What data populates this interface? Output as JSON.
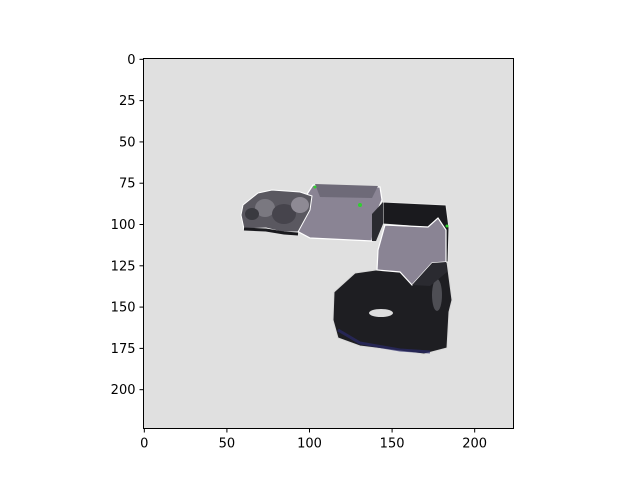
{
  "figure": {
    "x_ticks": [
      "0",
      "50",
      "100",
      "150",
      "200"
    ],
    "y_ticks": [
      "0",
      "25",
      "50",
      "75",
      "100",
      "125",
      "150",
      "175",
      "200"
    ],
    "x_tick_values": [
      0,
      50,
      100,
      150,
      200
    ],
    "y_tick_values": [
      0,
      25,
      50,
      75,
      100,
      125,
      150,
      175,
      200
    ],
    "x_range": [
      0,
      224
    ],
    "y_range": [
      224,
      0
    ],
    "background_color": "#e0e0e0"
  },
  "image": {
    "subject": "robot-arm",
    "colors": {
      "dark_body": "#1e1e22",
      "mid_body": "#3a3a40",
      "light_panel": "#8a8494",
      "highlight": "#c8c4cc",
      "edge": "#ffffff"
    }
  }
}
